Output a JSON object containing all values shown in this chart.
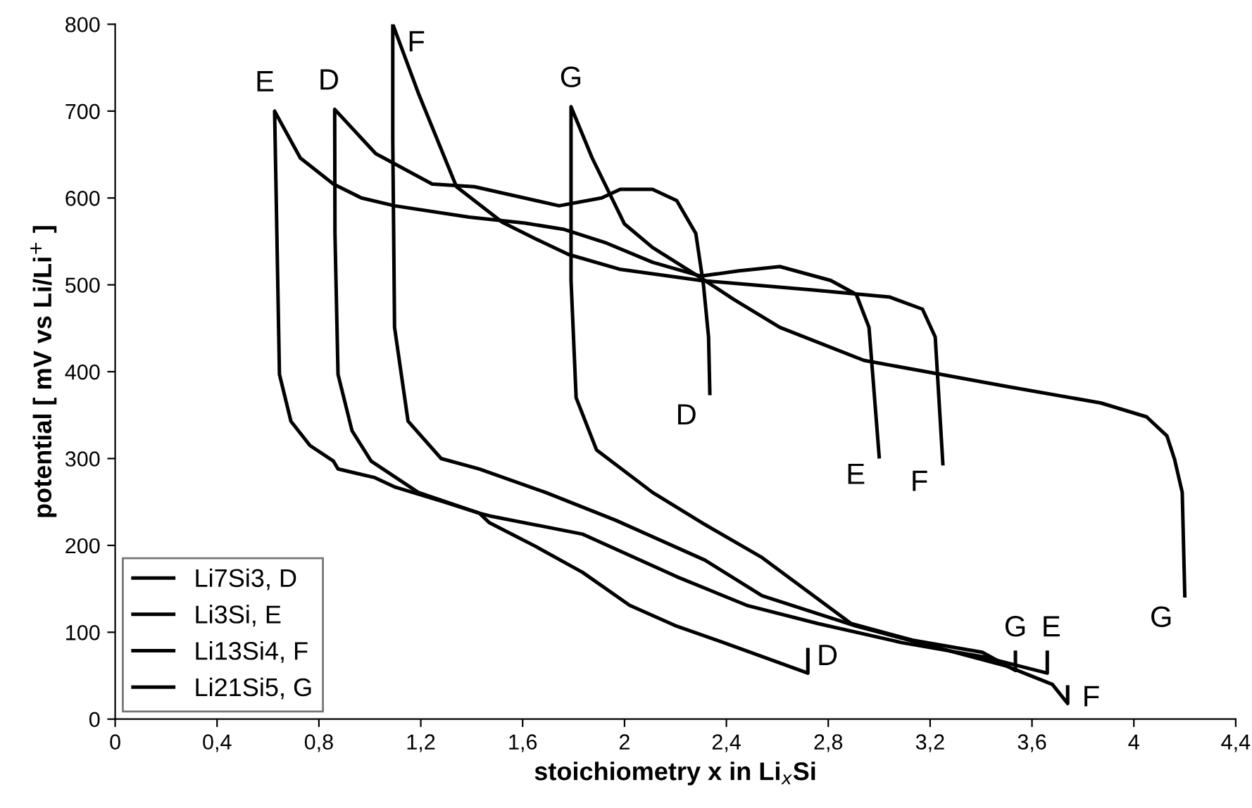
{
  "chart_data": {
    "type": "line",
    "xlabel": "stoichiometry x in Li$_{x}$Si",
    "ylabel": "potential [ mV vs Li/Li$^{+}$ ]",
    "xlim": [
      0,
      4.4
    ],
    "xticks": [
      0,
      {
        "value": 0.4,
        "label": "0,4"
      },
      {
        "value": 0.8,
        "label": "0,8"
      },
      {
        "value": 1.2,
        "label": "1,2"
      },
      {
        "value": 1.6,
        "label": "1,6"
      },
      2,
      {
        "value": 2.4,
        "label": "2,4"
      },
      {
        "value": 2.8,
        "label": "2,8"
      },
      {
        "value": 3.2,
        "label": "3,2"
      },
      {
        "value": 3.6,
        "label": "3,6"
      },
      4,
      {
        "value": 4.4,
        "label": "4,4"
      }
    ],
    "ylim": [
      0,
      800
    ],
    "yticks": [
      0,
      100,
      200,
      300,
      400,
      500,
      600,
      700,
      800
    ],
    "grid": false,
    "legend": "bottom left",
    "marker": "none",
    "line_style": "solid",
    "series": [
      {
        "name": "Li7Si3, D",
        "color": "#000000",
        "x": [
          2.335,
          2.33,
          2.31,
          2.28,
          2.205,
          2.11,
          1.983,
          1.91,
          1.743,
          1.41,
          1.245,
          1.023,
          0.862,
          0.863,
          0.875,
          0.93,
          1.005,
          1.19,
          1.43,
          1.47,
          1.65,
          1.835,
          2.02,
          2.205,
          2.39,
          2.72,
          2.72
        ],
        "values": [
          375,
          440,
          500,
          559,
          597,
          610,
          610,
          600,
          591,
          613,
          616,
          651,
          702,
          559,
          397,
          332,
          297,
          261,
          237,
          226,
          199,
          169,
          131,
          107,
          88,
          53,
          80
        ]
      },
      {
        "name": "Li3Si, E",
        "color": "#000000",
        "x": [
          3.0,
          2.96,
          2.91,
          2.81,
          2.61,
          2.445,
          2.3,
          2.11,
          1.93,
          1.76,
          1.61,
          1.39,
          1.097,
          0.967,
          0.857,
          0.727,
          0.626,
          0.645,
          0.69,
          0.765,
          0.857,
          0.875,
          1.02,
          1.1,
          1.28,
          1.43,
          1.47,
          1.835,
          2.205,
          2.48,
          2.76,
          3.09,
          3.405,
          3.66,
          3.66
        ],
        "values": [
          302,
          451,
          489,
          505,
          521,
          516,
          510,
          526,
          548,
          564,
          571,
          578,
          591,
          600,
          616,
          646,
          700,
          397,
          343,
          315,
          297,
          288,
          278,
          267,
          251,
          237,
          234,
          213,
          164,
          131,
          110,
          88,
          72,
          53,
          77
        ]
      },
      {
        "name": "Li13Si4, F",
        "color": "#000000",
        "x": [
          3.25,
          3.22,
          3.17,
          3.04,
          2.74,
          2.3,
          1.98,
          1.78,
          1.65,
          1.52,
          1.34,
          1.19,
          1.09,
          1.09,
          1.097,
          1.15,
          1.28,
          1.43,
          1.69,
          1.965,
          2.316,
          2.54,
          2.91,
          3.22,
          3.5,
          3.68,
          3.74,
          3.74
        ],
        "values": [
          294,
          440,
          472,
          486,
          494,
          505,
          518,
          535,
          553,
          572,
          613,
          721,
          800,
          667,
          451,
          343,
          300,
          288,
          261,
          229,
          183,
          142,
          107,
          83,
          61,
          40,
          18,
          37
        ]
      },
      {
        "name": "Li21Si5, G",
        "color": "#000000",
        "x": [
          4.2,
          4.19,
          4.16,
          4.13,
          4.05,
          3.87,
          3.5,
          3.24,
          2.94,
          2.61,
          2.43,
          2.3,
          2.11,
          2.0,
          1.873,
          1.79,
          1.79,
          1.81,
          1.89,
          2.11,
          2.316,
          2.54,
          2.89,
          3.13,
          3.405,
          3.535,
          3.535
        ],
        "values": [
          142,
          261,
          299,
          326,
          348,
          364,
          383,
          397,
          413,
          451,
          483,
          508,
          543,
          570,
          646,
          705,
          505,
          370,
          310,
          261,
          224,
          186,
          110,
          91,
          77,
          56,
          77
        ]
      }
    ],
    "annotations": [
      {
        "text": "D",
        "x": 0.862,
        "y": 702
      },
      {
        "text": "E",
        "x": 0.626,
        "y": 700
      },
      {
        "text": "F",
        "x": 1.09,
        "y": 800
      },
      {
        "text": "G",
        "x": 1.79,
        "y": 705
      },
      {
        "text": "D",
        "x": 2.335,
        "y": 375
      },
      {
        "text": "E",
        "x": 3.0,
        "y": 302
      },
      {
        "text": "F",
        "x": 3.25,
        "y": 294
      },
      {
        "text": "G",
        "x": 4.2,
        "y": 142
      },
      {
        "text": "D",
        "x": 2.72,
        "y": 80
      },
      {
        "text": "G",
        "x": 3.535,
        "y": 77
      },
      {
        "text": "E",
        "x": 3.66,
        "y": 77
      },
      {
        "text": "F",
        "x": 3.74,
        "y": 37
      }
    ]
  }
}
